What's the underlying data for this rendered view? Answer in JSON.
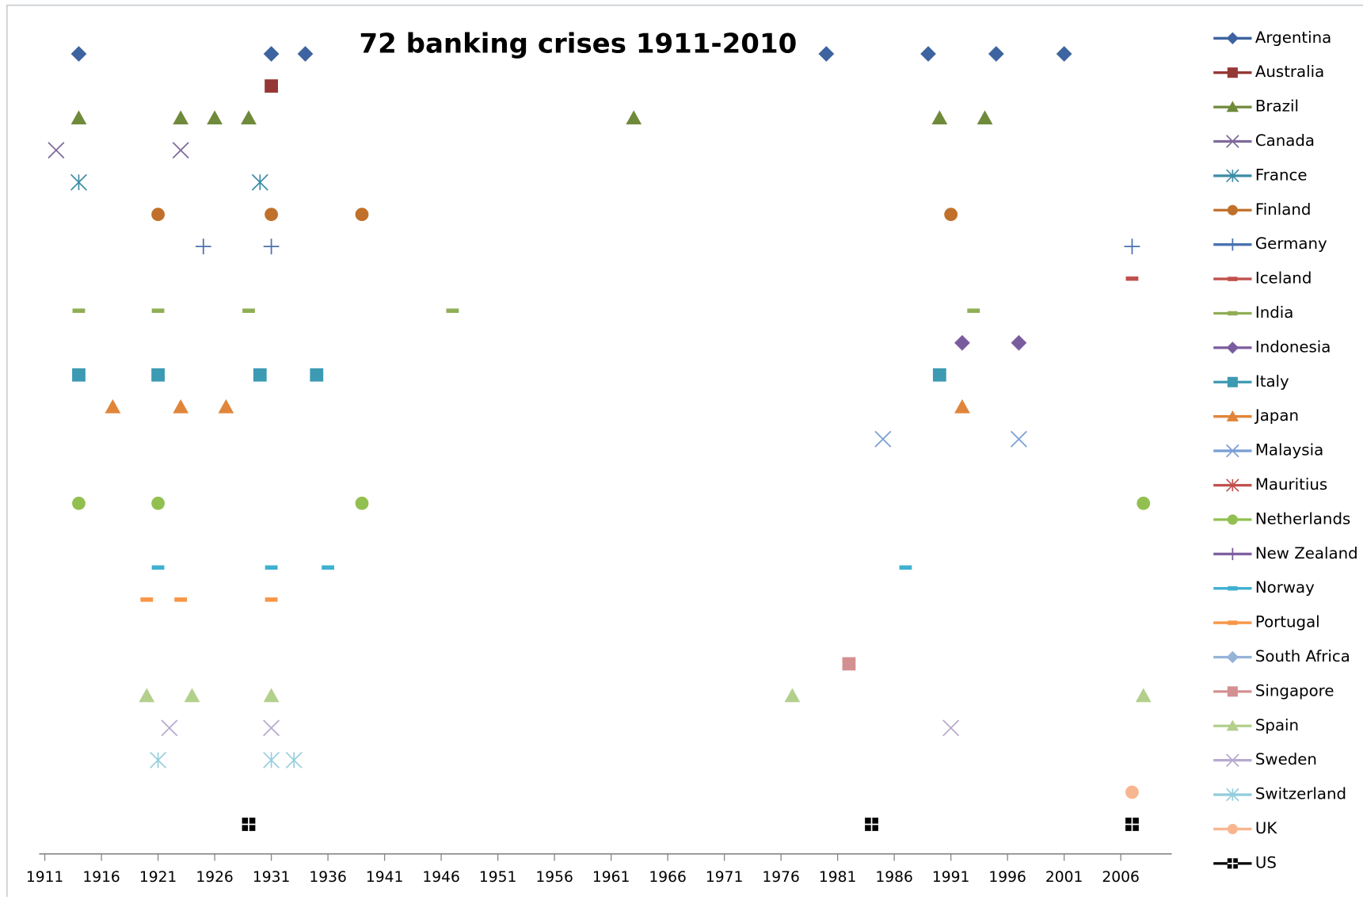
{
  "chart_data": {
    "type": "scatter",
    "title": "72 banking crises 1911-2010",
    "xlim": [
      1910.5,
      2010.5
    ],
    "xticks": [
      1911,
      1916,
      1921,
      1926,
      1931,
      1936,
      1941,
      1946,
      1951,
      1956,
      1961,
      1966,
      1971,
      1976,
      1981,
      1986,
      1991,
      1996,
      2001,
      2006
    ],
    "series": [
      {
        "name": "Argentina",
        "color": "#3d64a0",
        "marker": "diamond",
        "x": [
          1914,
          1931,
          1934,
          1980,
          1989,
          1995,
          2001
        ]
      },
      {
        "name": "Australia",
        "color": "#953735",
        "marker": "square",
        "x": [
          1931
        ]
      },
      {
        "name": "Brazil",
        "color": "#6f8a3a",
        "marker": "triangle",
        "x": [
          1914,
          1923,
          1926,
          1929,
          1963,
          1990,
          1994
        ]
      },
      {
        "name": "Canada",
        "color": "#7e6a9c",
        "marker": "x",
        "x": [
          1912,
          1923
        ]
      },
      {
        "name": "France",
        "color": "#3b8ca6",
        "marker": "asterisk",
        "x": [
          1914,
          1930
        ]
      },
      {
        "name": "Finland",
        "color": "#c0702a",
        "marker": "circle",
        "x": [
          1921,
          1931,
          1939,
          1991
        ]
      },
      {
        "name": "Germany",
        "color": "#4a72b0",
        "marker": "plus",
        "x": [
          1925,
          1931,
          2007
        ]
      },
      {
        "name": "Iceland",
        "color": "#c0504d",
        "marker": "dash",
        "x": [
          2007
        ]
      },
      {
        "name": "India",
        "color": "#8fae55",
        "marker": "dash",
        "x": [
          1914,
          1921,
          1929,
          1947,
          1993
        ]
      },
      {
        "name": "Indonesia",
        "color": "#7a5c9e",
        "marker": "diamond",
        "x": [
          1992,
          1997
        ]
      },
      {
        "name": "Italy",
        "color": "#3c9ab2",
        "marker": "square",
        "x": [
          1914,
          1921,
          1930,
          1935,
          1990
        ]
      },
      {
        "name": "Japan",
        "color": "#e0853a",
        "marker": "triangle",
        "x": [
          1917,
          1923,
          1927,
          1992
        ]
      },
      {
        "name": "Malaysia",
        "color": "#7aa0d6",
        "marker": "x",
        "x": [
          1985,
          1997
        ]
      },
      {
        "name": "Mauritius",
        "color": "#c0504d",
        "marker": "asterisk",
        "x": []
      },
      {
        "name": "Netherlands",
        "color": "#92c050",
        "marker": "circle",
        "x": [
          1914,
          1921,
          1939,
          2008
        ]
      },
      {
        "name": "New Zealand",
        "color": "#7a5c9e",
        "marker": "plus",
        "x": []
      },
      {
        "name": "Norway",
        "color": "#3fb0d0",
        "marker": "dash",
        "x": [
          1921,
          1931,
          1936,
          1987
        ]
      },
      {
        "name": "Portugal",
        "color": "#f79646",
        "marker": "dash",
        "x": [
          1920,
          1923,
          1931
        ]
      },
      {
        "name": "South Africa",
        "color": "#95b3d7",
        "marker": "diamond",
        "x": []
      },
      {
        "name": "Singapore",
        "color": "#d49090",
        "marker": "square",
        "x": [
          1982
        ]
      },
      {
        "name": "Spain",
        "color": "#b3cf8c",
        "marker": "triangle",
        "x": [
          1920,
          1924,
          1931,
          1977,
          2008
        ]
      },
      {
        "name": "Sweden",
        "color": "#b8aad0",
        "marker": "x",
        "x": [
          1922,
          1931,
          1991
        ]
      },
      {
        "name": "Switzerland",
        "color": "#93cddd",
        "marker": "asterisk",
        "x": [
          1921,
          1931,
          1933
        ]
      },
      {
        "name": "UK",
        "color": "#f8b690",
        "marker": "circle",
        "x": [
          2007
        ]
      },
      {
        "name": "US",
        "color": "#000000",
        "marker": "quad",
        "x": [
          1929,
          1984,
          2007
        ]
      }
    ]
  }
}
